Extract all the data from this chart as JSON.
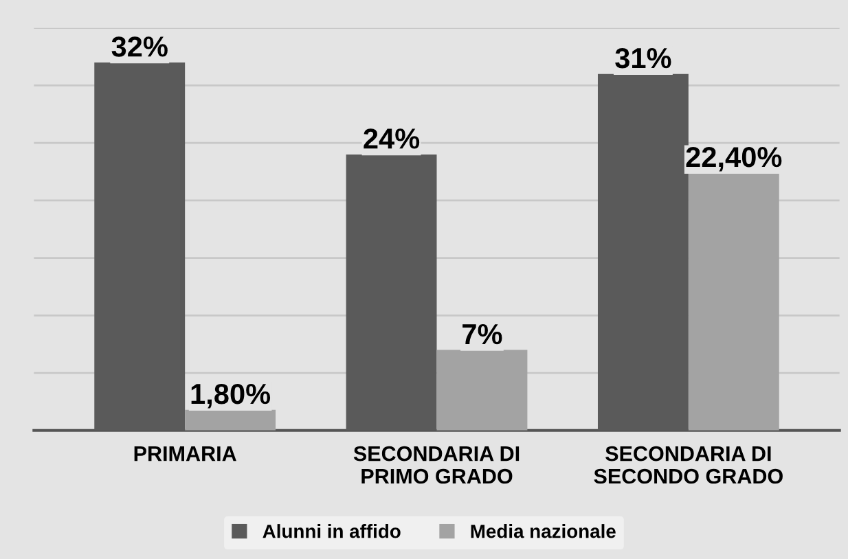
{
  "chart_data": {
    "type": "bar",
    "categories": [
      "PRIMARIA",
      "SECONDARIA DI\nPRIMO GRADO",
      "SECONDARIA DI\nSECONDO GRADO"
    ],
    "series": [
      {
        "name": "Alunni in affido",
        "color": "#5a5a5a",
        "values": [
          32,
          24,
          31
        ],
        "value_labels": [
          "32%",
          "24%",
          "31%"
        ]
      },
      {
        "name": "Media nazionale",
        "color": "#a3a3a3",
        "values": [
          1.8,
          7,
          22.4
        ],
        "value_labels": [
          "1,80%",
          "7%",
          "22,40%"
        ]
      }
    ],
    "ylim": [
      0,
      35
    ],
    "yticks": [
      {
        "value": 0,
        "label": null
      },
      {
        "value": 5,
        "label": null
      },
      {
        "value": 10,
        "label": null
      },
      {
        "value": 15,
        "label": null
      },
      {
        "value": 20,
        "label": null
      },
      {
        "value": 25,
        "label": null
      },
      {
        "value": 30,
        "label": null
      },
      {
        "value": 35,
        "label": null
      }
    ],
    "grid": "y",
    "tick_labels": "x",
    "legend": "bottom"
  }
}
